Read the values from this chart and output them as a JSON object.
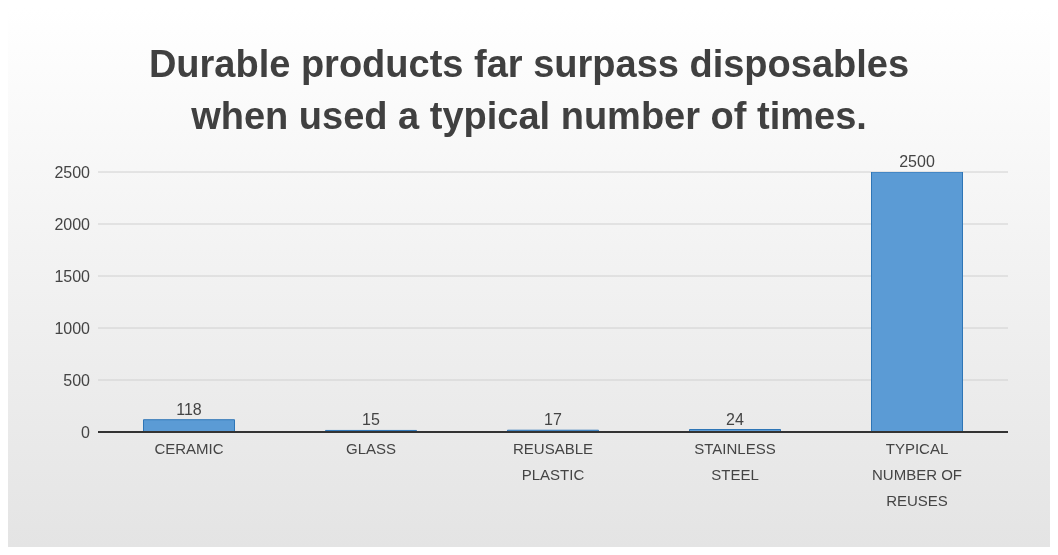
{
  "chart_data": {
    "type": "bar",
    "title": "Durable products far surpass disposables when used a typical number of times.",
    "categories": [
      "CERAMIC",
      "GLASS",
      "REUSABLE PLASTIC",
      "STAINLESS STEEL",
      "TYPICAL NUMBER OF REUSES"
    ],
    "values": [
      118,
      15,
      17,
      24,
      2500
    ],
    "color": "#5b9bd5",
    "ylim": [
      0,
      2500
    ],
    "yticks": [
      0,
      500,
      1000,
      1500,
      2000,
      2500
    ],
    "grid": "y",
    "data_labels": true
  }
}
